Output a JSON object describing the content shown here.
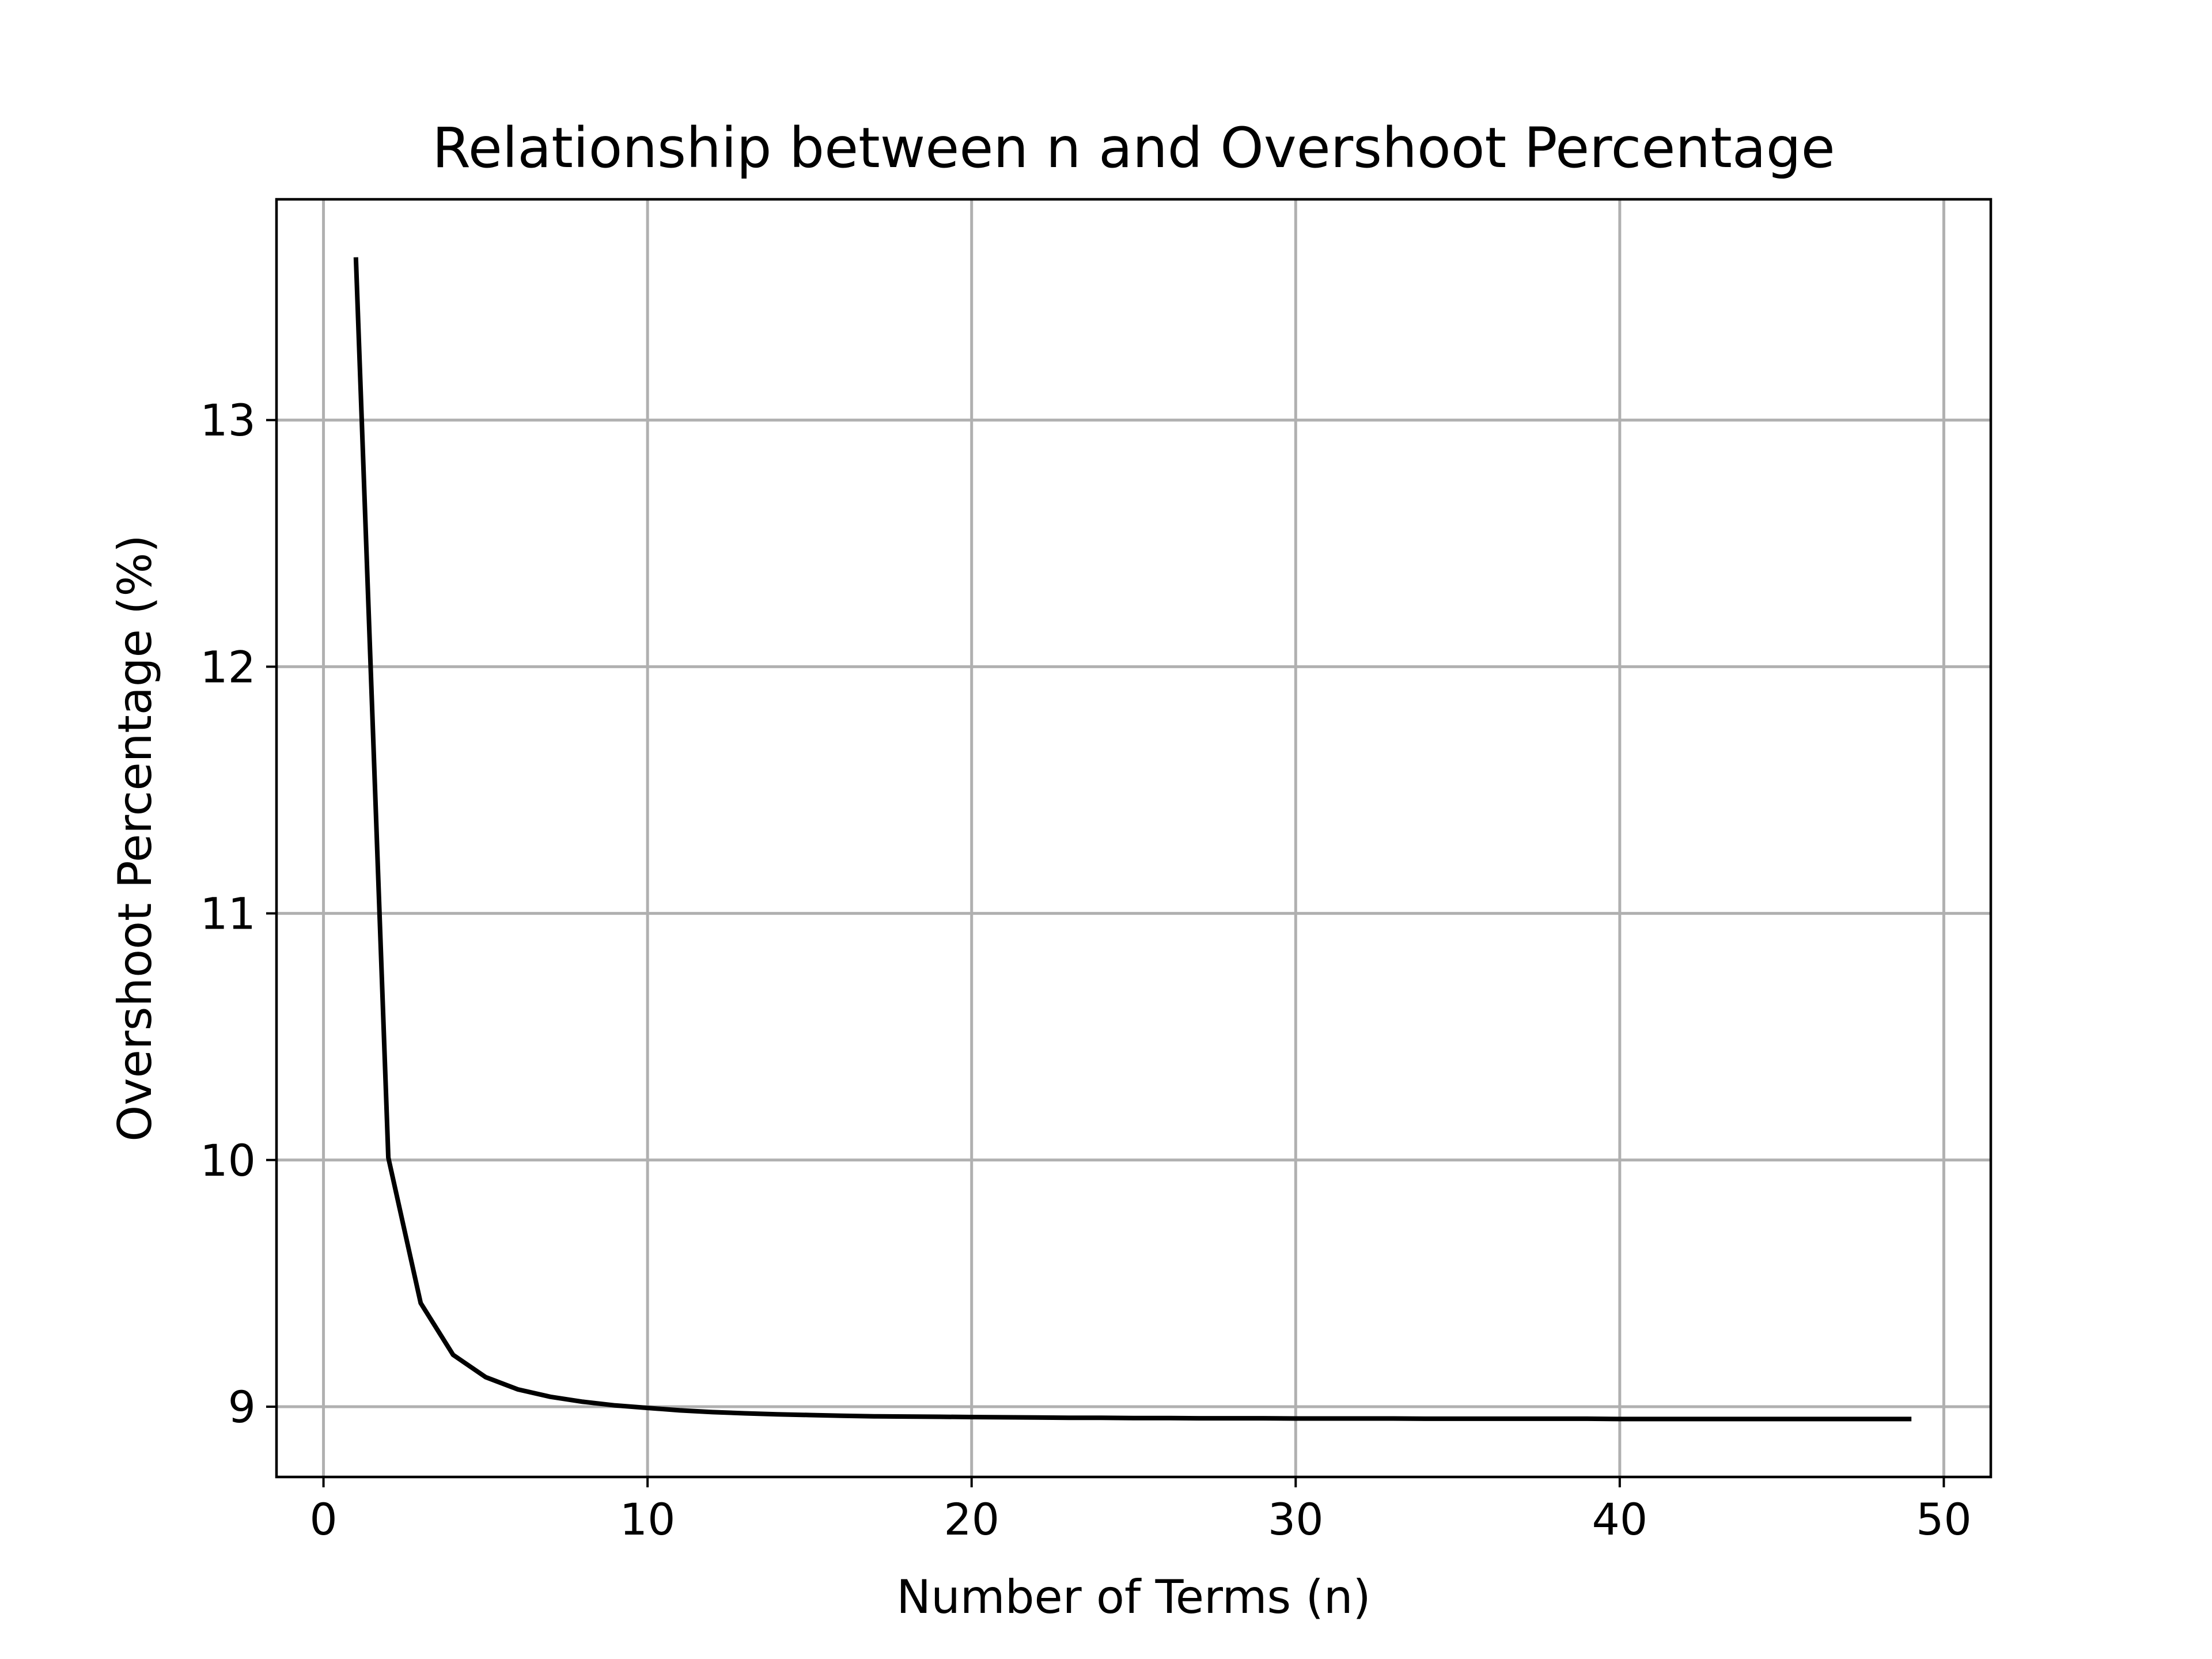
{
  "chart_data": {
    "type": "line",
    "title": "Relationship between n and Overshoot Percentage",
    "xlabel": "Number of Terms (n)",
    "ylabel": "Overshoot Percentage (%)",
    "xlim": [
      -1.45,
      51.45
    ],
    "ylim": [
      8.715,
      13.895
    ],
    "xticks": [
      0,
      10,
      20,
      30,
      40,
      50
    ],
    "xtick_labels": [
      "0",
      "10",
      "20",
      "30",
      "40",
      "50"
    ],
    "yticks": [
      9,
      10,
      11,
      12,
      13
    ],
    "ytick_labels": [
      "9",
      "10",
      "11",
      "12",
      "13"
    ],
    "grid": true,
    "series": [
      {
        "color": "#000000",
        "x": [
          1,
          2,
          3,
          4,
          5,
          6,
          7,
          8,
          9,
          10,
          11,
          12,
          13,
          14,
          15,
          16,
          17,
          18,
          19,
          20,
          21,
          22,
          23,
          24,
          25,
          26,
          27,
          28,
          29,
          30,
          31,
          32,
          33,
          34,
          35,
          36,
          37,
          38,
          39,
          40,
          41,
          42,
          43,
          44,
          45,
          46,
          47,
          48,
          49
        ],
        "y": [
          13.66,
          10.01,
          9.42,
          9.21,
          9.12,
          9.07,
          9.04,
          9.02,
          9.005,
          8.995,
          8.985,
          8.978,
          8.973,
          8.969,
          8.966,
          8.963,
          8.961,
          8.96,
          8.959,
          8.958,
          8.957,
          8.956,
          8.955,
          8.955,
          8.954,
          8.954,
          8.953,
          8.953,
          8.953,
          8.952,
          8.952,
          8.952,
          8.952,
          8.951,
          8.951,
          8.951,
          8.951,
          8.951,
          8.951,
          8.95,
          8.95,
          8.95,
          8.95,
          8.95,
          8.95,
          8.95,
          8.95,
          8.95,
          8.95
        ]
      }
    ]
  }
}
